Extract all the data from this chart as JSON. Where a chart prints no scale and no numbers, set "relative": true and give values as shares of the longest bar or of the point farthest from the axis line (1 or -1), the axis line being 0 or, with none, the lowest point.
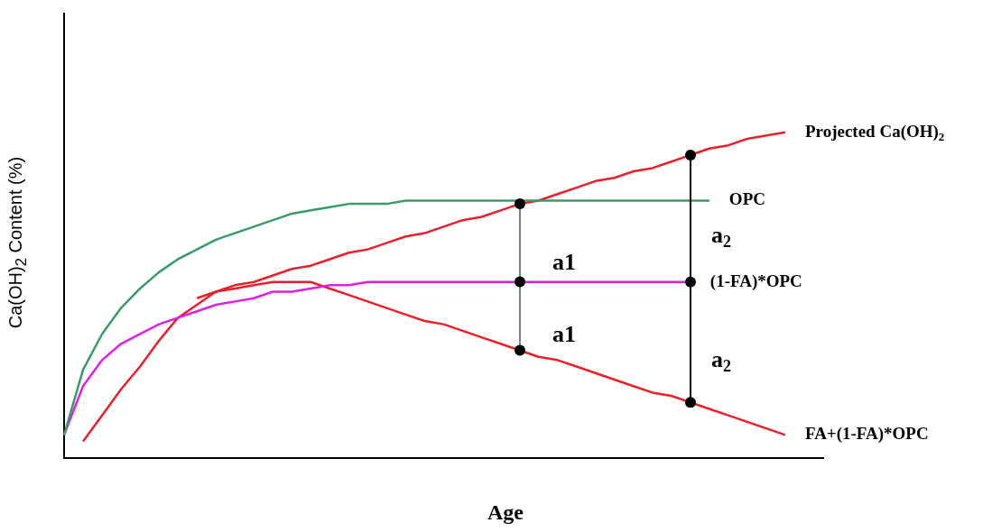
{
  "chart_data": {
    "type": "line",
    "relative": true,
    "xlabel": "Age",
    "ylabel": "Ca(OH)$_{2}$ Content (%)",
    "legend": "right",
    "grid": false,
    "line_style": "solid",
    "categories": [
      null,
      null,
      null,
      null,
      null,
      null,
      null,
      null,
      null,
      null,
      null,
      null,
      null,
      null,
      null,
      null,
      null,
      null,
      null,
      null,
      null,
      null,
      null,
      null,
      null,
      null,
      null,
      null,
      null,
      null,
      null,
      null,
      null,
      null,
      null,
      null,
      null,
      null,
      null,
      null,
      null
    ],
    "annotations": [
      "a1",
      "a1",
      "a$_{2}$",
      "a$_{2}$"
    ],
    "series": [
      {
        "name": "OPC",
        "color": "#3a9a6a",
        "values": [
          0.07,
          0.27,
          0.38,
          0.46,
          0.52,
          0.57,
          0.61,
          0.64,
          0.67,
          0.69,
          0.71,
          0.73,
          0.75,
          0.76,
          0.77,
          0.78,
          0.78,
          0.78,
          0.79,
          0.79,
          0.79,
          0.79,
          0.79,
          0.79,
          0.79,
          0.79,
          0.79,
          0.79,
          0.79,
          0.79,
          0.79,
          0.79,
          0.79,
          0.79,
          0.79,
          null,
          null,
          null,
          null,
          null,
          null
        ]
      },
      {
        "name": "(1-FA)*OPC",
        "color": "#e020e0",
        "values": [
          0.07,
          0.22,
          0.3,
          0.35,
          0.38,
          0.41,
          0.43,
          0.45,
          0.47,
          0.48,
          0.49,
          0.51,
          0.51,
          0.52,
          0.53,
          0.53,
          0.54,
          0.54,
          0.54,
          0.54,
          0.54,
          0.54,
          0.54,
          0.54,
          0.54,
          0.54,
          0.54,
          0.54,
          0.54,
          0.54,
          0.54,
          0.54,
          0.54,
          0.54,
          null,
          null,
          null,
          null,
          null,
          null,
          null
        ]
      },
      {
        "name": "Projected Ca(OH)$_{2}$",
        "color": "#e8202a",
        "values": [
          null,
          null,
          null,
          null,
          null,
          null,
          null,
          0.49,
          0.51,
          0.53,
          0.54,
          0.56,
          0.58,
          0.59,
          0.61,
          0.63,
          0.64,
          0.66,
          0.68,
          0.69,
          0.71,
          0.73,
          0.74,
          0.76,
          0.78,
          0.79,
          0.81,
          0.83,
          0.85,
          0.86,
          0.88,
          0.89,
          0.91,
          0.93,
          0.95,
          0.96,
          0.98,
          0.99,
          1,
          null,
          null
        ]
      },
      {
        "name": "FA+(1-FA)*OPC",
        "color": "#e8202a",
        "values": [
          null,
          0.05,
          0.13,
          0.21,
          0.28,
          0.36,
          0.43,
          0.47,
          0.51,
          0.52,
          0.53,
          0.54,
          0.54,
          0.54,
          0.52,
          0.5,
          0.48,
          0.46,
          0.44,
          0.42,
          0.41,
          0.39,
          0.37,
          0.35,
          0.33,
          0.31,
          0.3,
          0.28,
          0.26,
          0.24,
          0.22,
          0.2,
          0.19,
          0.17,
          0.15,
          0.13,
          0.11,
          0.09,
          0.07,
          null,
          null
        ]
      }
    ]
  }
}
